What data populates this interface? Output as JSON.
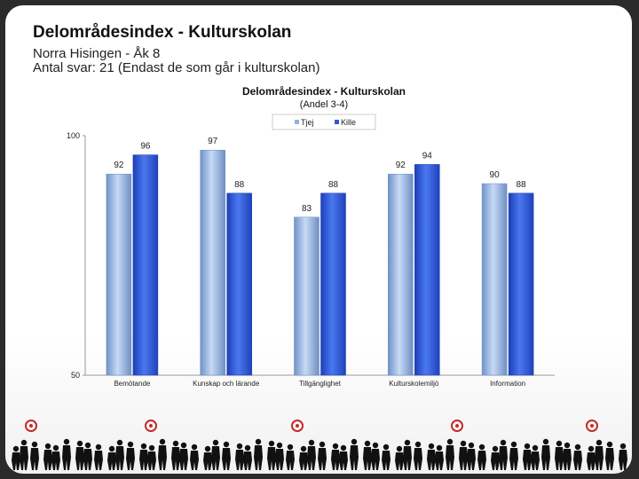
{
  "header": {
    "title": "Delområdesindex - Kulturskolan",
    "subtitle1": "Norra Hisingen - Åk 8",
    "subtitle2": "Antal svar: 21 (Endast de som går i kulturskolan)"
  },
  "chart_data": {
    "type": "bar",
    "title": "Delområdesindex  - Kulturskolan",
    "subtitle": "(Andel 3-4)",
    "categories": [
      "Bemötande",
      "Kunskap och lärande",
      "Tillgänglighet",
      "Kulturskolemiljö",
      "Information"
    ],
    "series": [
      {
        "name": "Tjej",
        "values": [
          92,
          97,
          83,
          92,
          90
        ],
        "color": "#8fb3e0"
      },
      {
        "name": "Kille",
        "values": [
          96,
          88,
          88,
          94,
          88
        ],
        "color": "#2f57d6"
      }
    ],
    "ylim": [
      50,
      100
    ],
    "yticks": [
      "50",
      "100"
    ],
    "legend": "top",
    "grid": false
  }
}
